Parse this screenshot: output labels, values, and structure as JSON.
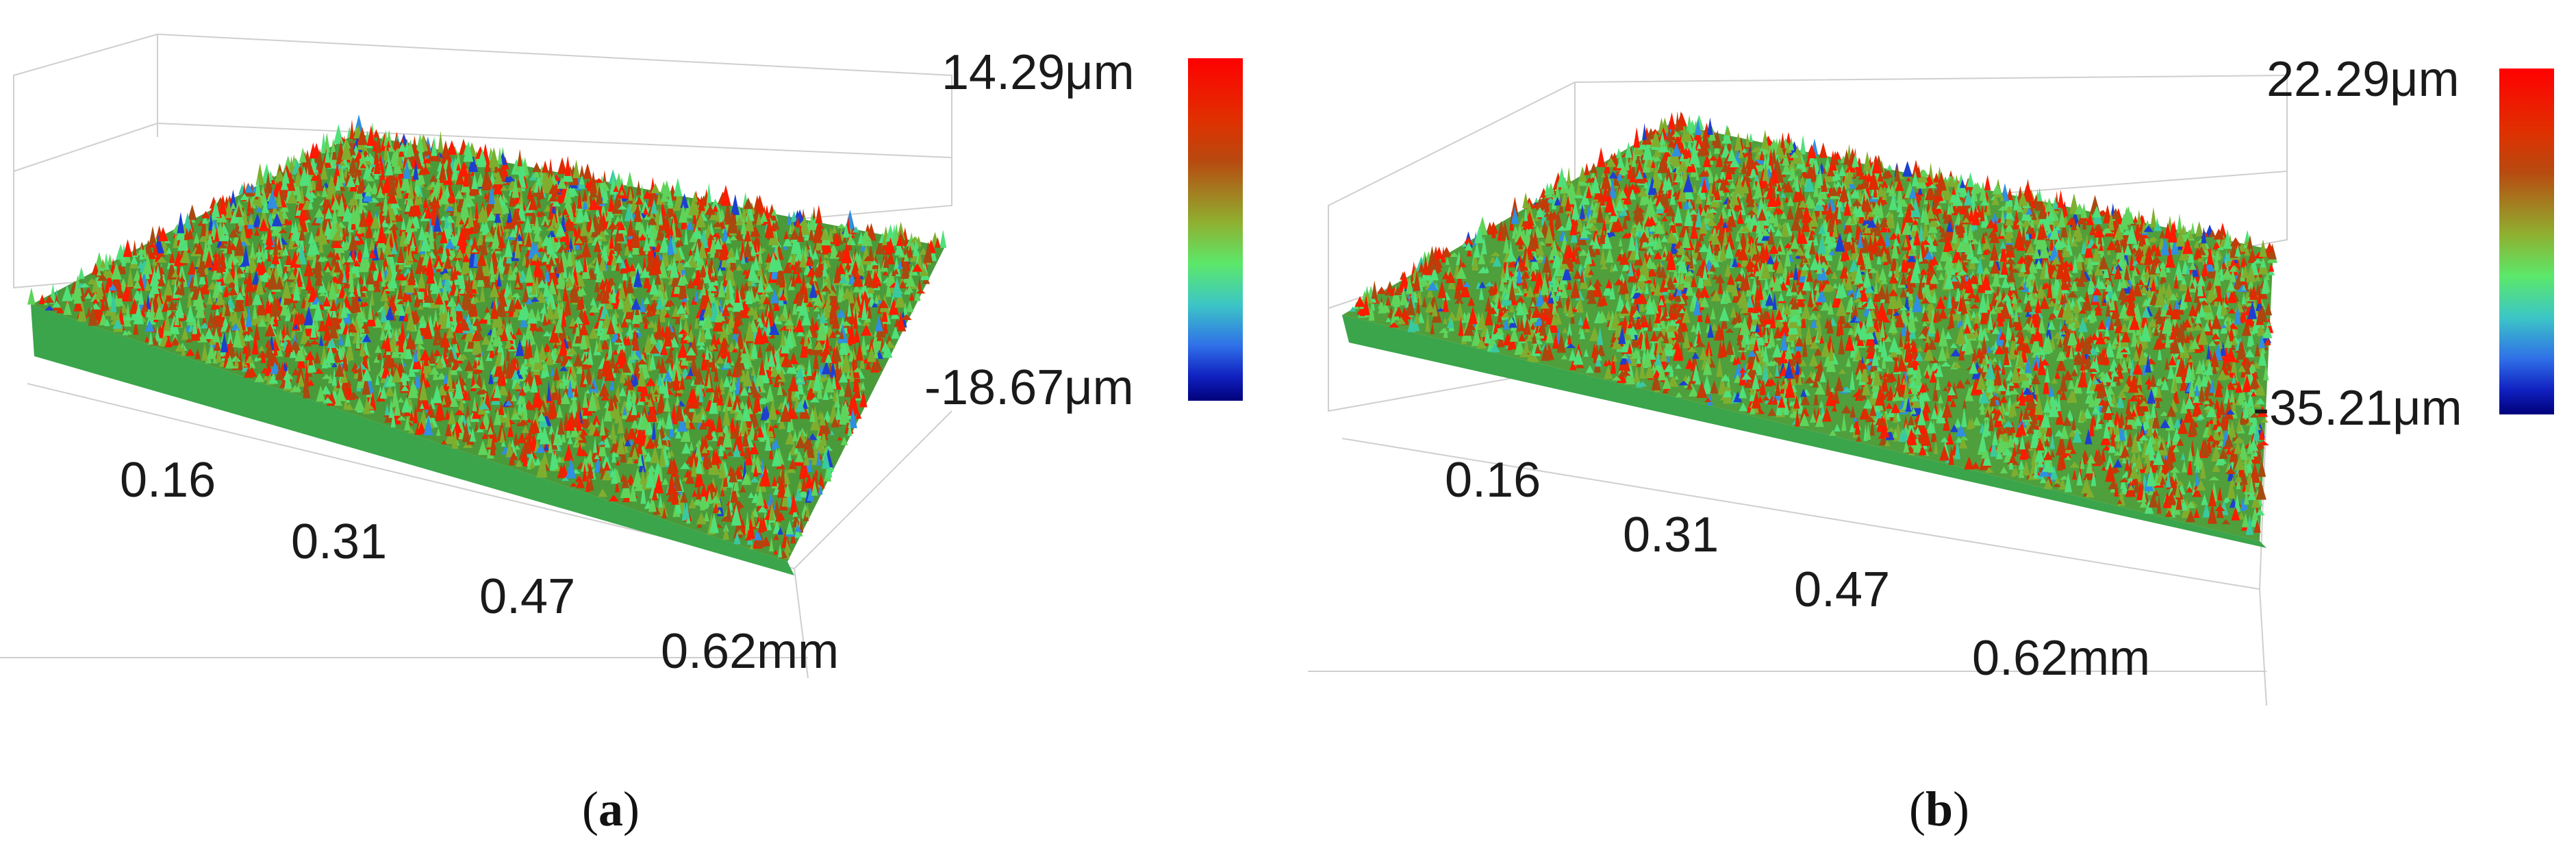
{
  "panels": [
    {
      "colorbar_max": "14.29μm",
      "colorbar_min": "-18.67μm",
      "ticks": [
        "0.16",
        "0.31",
        "0.47",
        "0.62mm"
      ],
      "caption_open": "(",
      "caption_letter": "a",
      "caption_close": ")"
    },
    {
      "colorbar_max": "22.29μm",
      "colorbar_min": "-35.21μm",
      "ticks": [
        "0.16",
        "0.31",
        "0.47",
        "0.62mm"
      ],
      "caption_open": "(",
      "caption_letter": "b",
      "caption_close": ")"
    }
  ],
  "colors": {
    "high": "#ff0000",
    "mid": "#5ce86a",
    "low": "#00007a",
    "grid": "#cfcfcf"
  }
}
